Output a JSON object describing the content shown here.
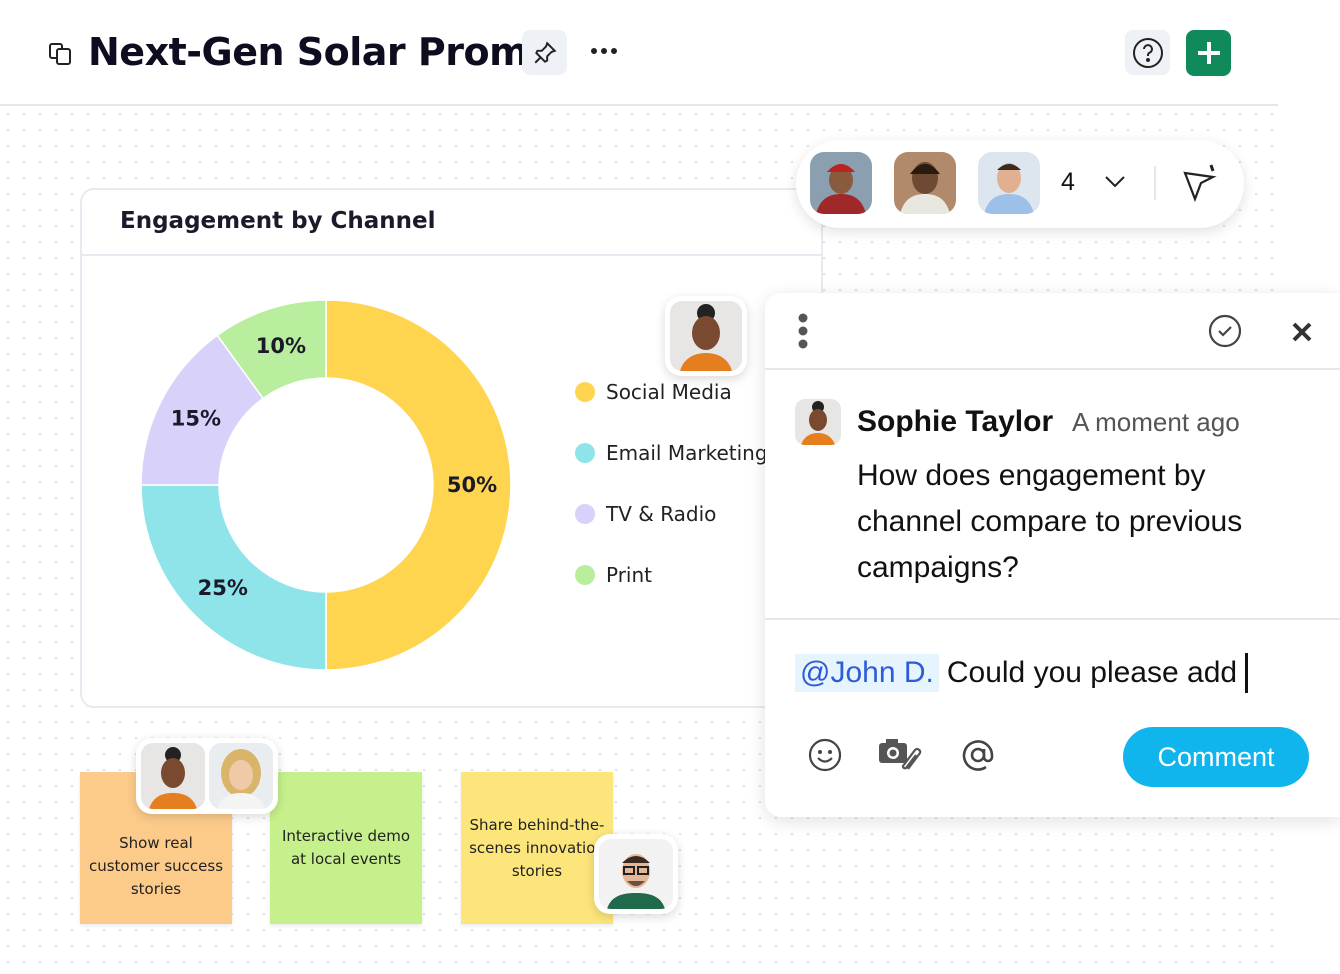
{
  "header": {
    "title": "Next-Gen Solar Promo"
  },
  "presence": {
    "count": "4"
  },
  "chart_data": {
    "type": "pie",
    "title": "Engagement by Channel",
    "donut": true,
    "categories": [
      "Social Media",
      "Email Marketing",
      "TV & Radio",
      "Print"
    ],
    "values": [
      50,
      25,
      15,
      10
    ],
    "labels": [
      "50%",
      "25%",
      "15%",
      "10%"
    ],
    "colors": [
      "#FFD54F",
      "#8FE4EA",
      "#D8D1FA",
      "#B8EE9E"
    ],
    "legend": "right"
  },
  "comment": {
    "author": "Sophie Taylor",
    "time": "A moment ago",
    "text": "How does engagement by channel compare to previous campaigns?",
    "reply_mention": "@John D.",
    "reply_text": "Could you please add",
    "submit_label": "Comment",
    "accent": "#10B5EE"
  },
  "notes": [
    {
      "text": "Show real customer success stories",
      "color": "#FCCB8A"
    },
    {
      "text": "Interactive demo at local events",
      "color": "#C6F08B"
    },
    {
      "text": "Share behind-the-scenes innovation stories",
      "color": "#FCE57B"
    }
  ]
}
